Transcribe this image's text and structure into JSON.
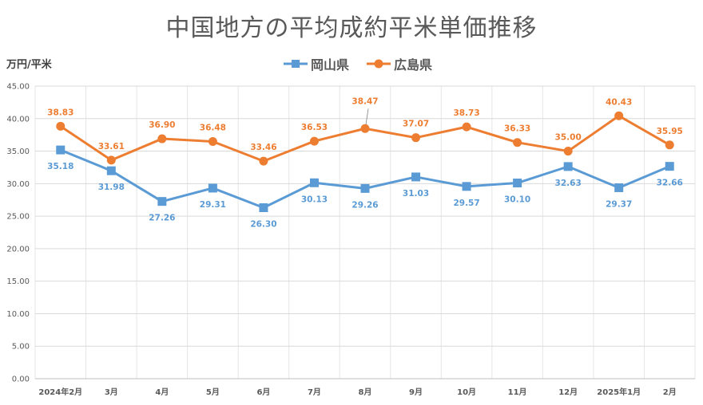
{
  "chart_data": {
    "type": "line",
    "title": "中国地方の平均成約平米単価推移",
    "ylabel": "万円/平米",
    "categories": [
      "2024年2月",
      "3月",
      "4月",
      "5月",
      "6月",
      "7月",
      "8月",
      "9月",
      "10月",
      "11月",
      "12月",
      "2025年1月",
      "2月"
    ],
    "ylim": [
      0,
      45
    ],
    "yticks": [
      "0.00",
      "5.00",
      "10.00",
      "15.00",
      "20.00",
      "25.00",
      "30.00",
      "35.00",
      "40.00",
      "45.00"
    ],
    "grid": true,
    "legend_position": "top",
    "series": [
      {
        "name": "岡山県",
        "color": "#5B9BD5",
        "marker": "square",
        "values": [
          35.18,
          31.98,
          27.26,
          29.31,
          26.3,
          30.13,
          29.26,
          31.03,
          29.57,
          30.1,
          32.63,
          29.37,
          32.66
        ],
        "labels": [
          "35.18",
          "31.98",
          "27.26",
          "29.31",
          "26.30",
          "30.13",
          "29.26",
          "31.03",
          "29.57",
          "30.10",
          "32.63",
          "29.37",
          "32.66"
        ]
      },
      {
        "name": "広島県",
        "color": "#ED7D31",
        "marker": "circle",
        "values": [
          38.83,
          33.61,
          36.9,
          36.48,
          33.46,
          36.53,
          38.47,
          37.07,
          38.73,
          36.33,
          35.0,
          40.43,
          35.95
        ],
        "labels": [
          "38.83",
          "33.61",
          "36.90",
          "36.48",
          "33.46",
          "36.53",
          "38.47",
          "37.07",
          "38.73",
          "36.33",
          "35.00",
          "40.43",
          "35.95"
        ]
      }
    ]
  }
}
